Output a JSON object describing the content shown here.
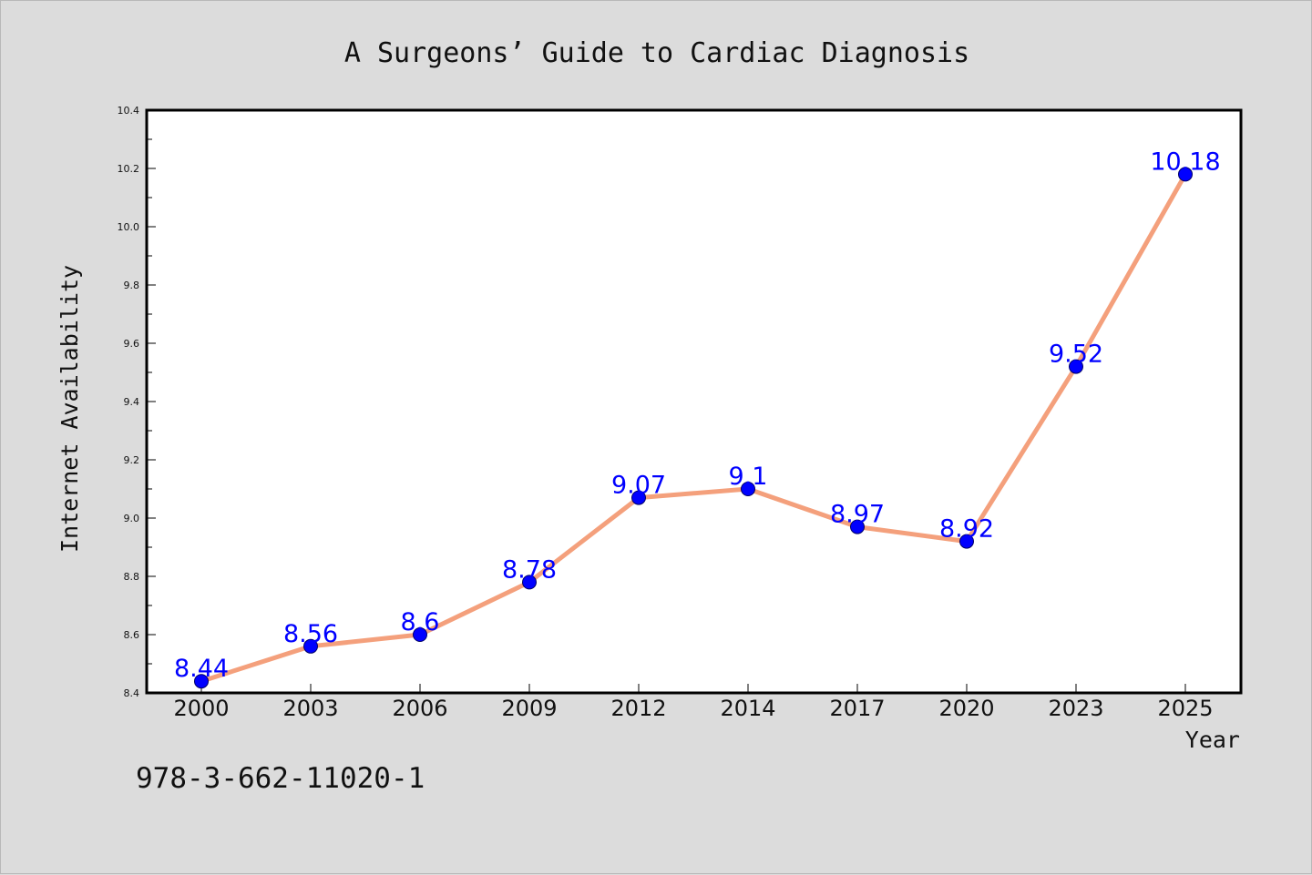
{
  "footer": {
    "isbn": "978-3-662-11020-1"
  },
  "colors": {
    "background": "#dcdcdc",
    "plot_background": "#ffffff",
    "line": "#f4a07c",
    "marker": "#0000ff",
    "data_label": "#0000ff"
  },
  "chart_data": {
    "type": "line",
    "title": "A Surgeons’ Guide to Cardiac Diagnosis",
    "xlabel": "Year",
    "ylabel": "Internet Availability",
    "categories": [
      "2000",
      "2003",
      "2006",
      "2009",
      "2012",
      "2014",
      "2017",
      "2020",
      "2023",
      "2025"
    ],
    "series": [
      {
        "values": [
          8.44,
          8.56,
          8.6,
          8.78,
          9.07,
          9.1,
          8.97,
          8.92,
          9.52,
          10.18
        ],
        "data_labels": [
          "8.44",
          "8.56",
          "8.6",
          "8.78",
          "9.07",
          "9.1",
          "8.97",
          "8.92",
          "9.52",
          "10.18"
        ]
      }
    ],
    "ylim": [
      8.4,
      10.4
    ],
    "y_ticks": [
      "8.4",
      "8.6",
      "8.8",
      "9.0",
      "9.2",
      "9.4",
      "9.6",
      "9.8",
      "10.0",
      "10.2",
      "10.4"
    ],
    "grid": false,
    "legend": "none"
  }
}
